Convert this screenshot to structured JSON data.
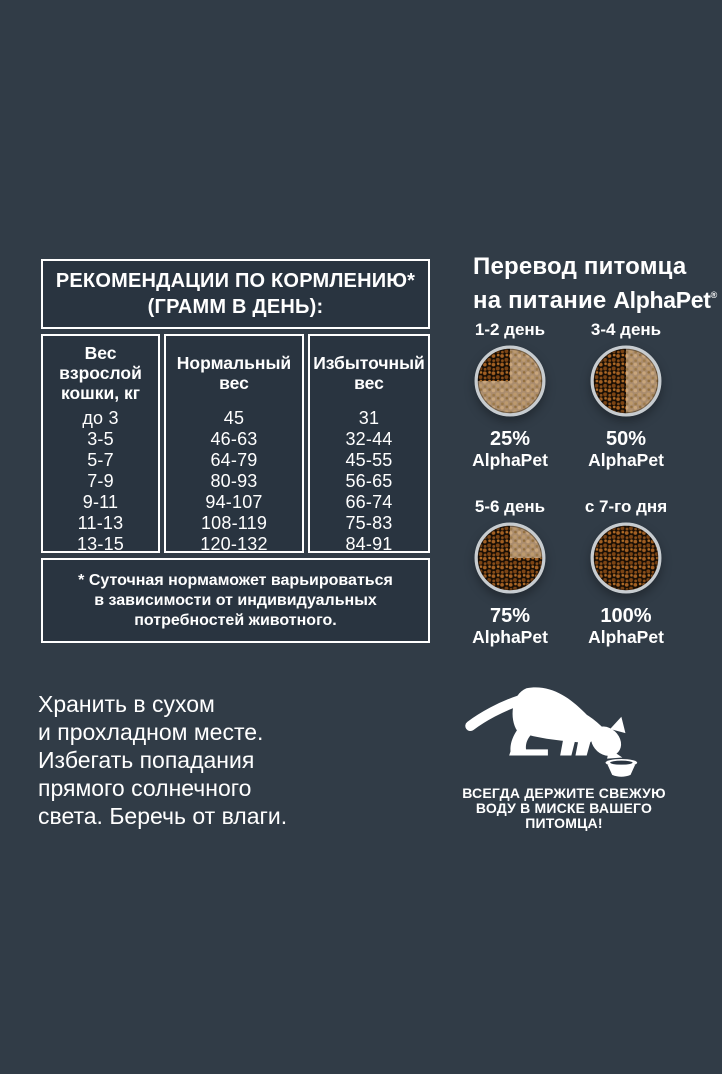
{
  "colors": {
    "background": "#313c47",
    "panel": "#293440",
    "border": "#ffffff",
    "text": "#ffffff",
    "bowl_rim": "#c7ccd0",
    "kibble_dark_bg": "#170d04",
    "kibble_dark_1": "#a25f22",
    "kibble_dark_2": "#7c4414",
    "kibble_light_bg": "#ab8d6e",
    "kibble_light_1": "#c9a67c",
    "kibble_light_2": "#93703f"
  },
  "feeding_table": {
    "title_lines": [
      "РЕКОМЕНДАЦИИ ПО КОРМЛЕНИЮ*",
      "(ГРАММ В ДЕНЬ):"
    ],
    "columns": [
      {
        "header": "Вес\nвзрослой\nкошки, кг",
        "values": [
          "до 3",
          "3-5",
          "5-7",
          "7-9",
          "9-11",
          "11-13",
          "13-15"
        ]
      },
      {
        "header": "Нормальный\nвес",
        "values": [
          "45",
          "46-63",
          "64-79",
          "80-93",
          "94-107",
          "108-119",
          "120-132"
        ]
      },
      {
        "header": "Избыточный\nвес",
        "values": [
          "31",
          "32-44",
          "45-55",
          "56-65",
          "66-74",
          "75-83",
          "84-91"
        ]
      }
    ],
    "footnote": "* Суточная нормаможет варьироваться\nв зависимости от индивидуальных\nпотребностей животного."
  },
  "transition": {
    "heading_line1": "Перевод питомца",
    "heading_line2": "на питание ",
    "brand": "AlphaPet",
    "brand_mark": "®",
    "steps": [
      {
        "day": "1-2 день",
        "percent": "25%",
        "brand": "AlphaPet",
        "fraction": 0.25
      },
      {
        "day": "3-4 день",
        "percent": "50%",
        "brand": "AlphaPet",
        "fraction": 0.5
      },
      {
        "day": "5-6 день",
        "percent": "75%",
        "brand": "AlphaPet",
        "fraction": 0.75
      },
      {
        "day": "с 7-го дня",
        "percent": "100%",
        "brand": "AlphaPet",
        "fraction": 1
      }
    ]
  },
  "storage_note": "Хранить в сухом\nи прохладном месте.\nИзбегать попадания\nпрямого солнечного\nсвета. Беречь от влаги.",
  "water_note": {
    "line1": "ВСЕГДА ДЕРЖИТЕ СВЕЖУЮ",
    "line2": "ВОДУ В МИСКЕ ВАШЕГО ПИТОМЦА!"
  },
  "icons": {
    "cat": "cat-drinking-silhouette",
    "pet_bowl": "pet-bowl",
    "food_bowl": "kibble-bowl-top-view"
  }
}
